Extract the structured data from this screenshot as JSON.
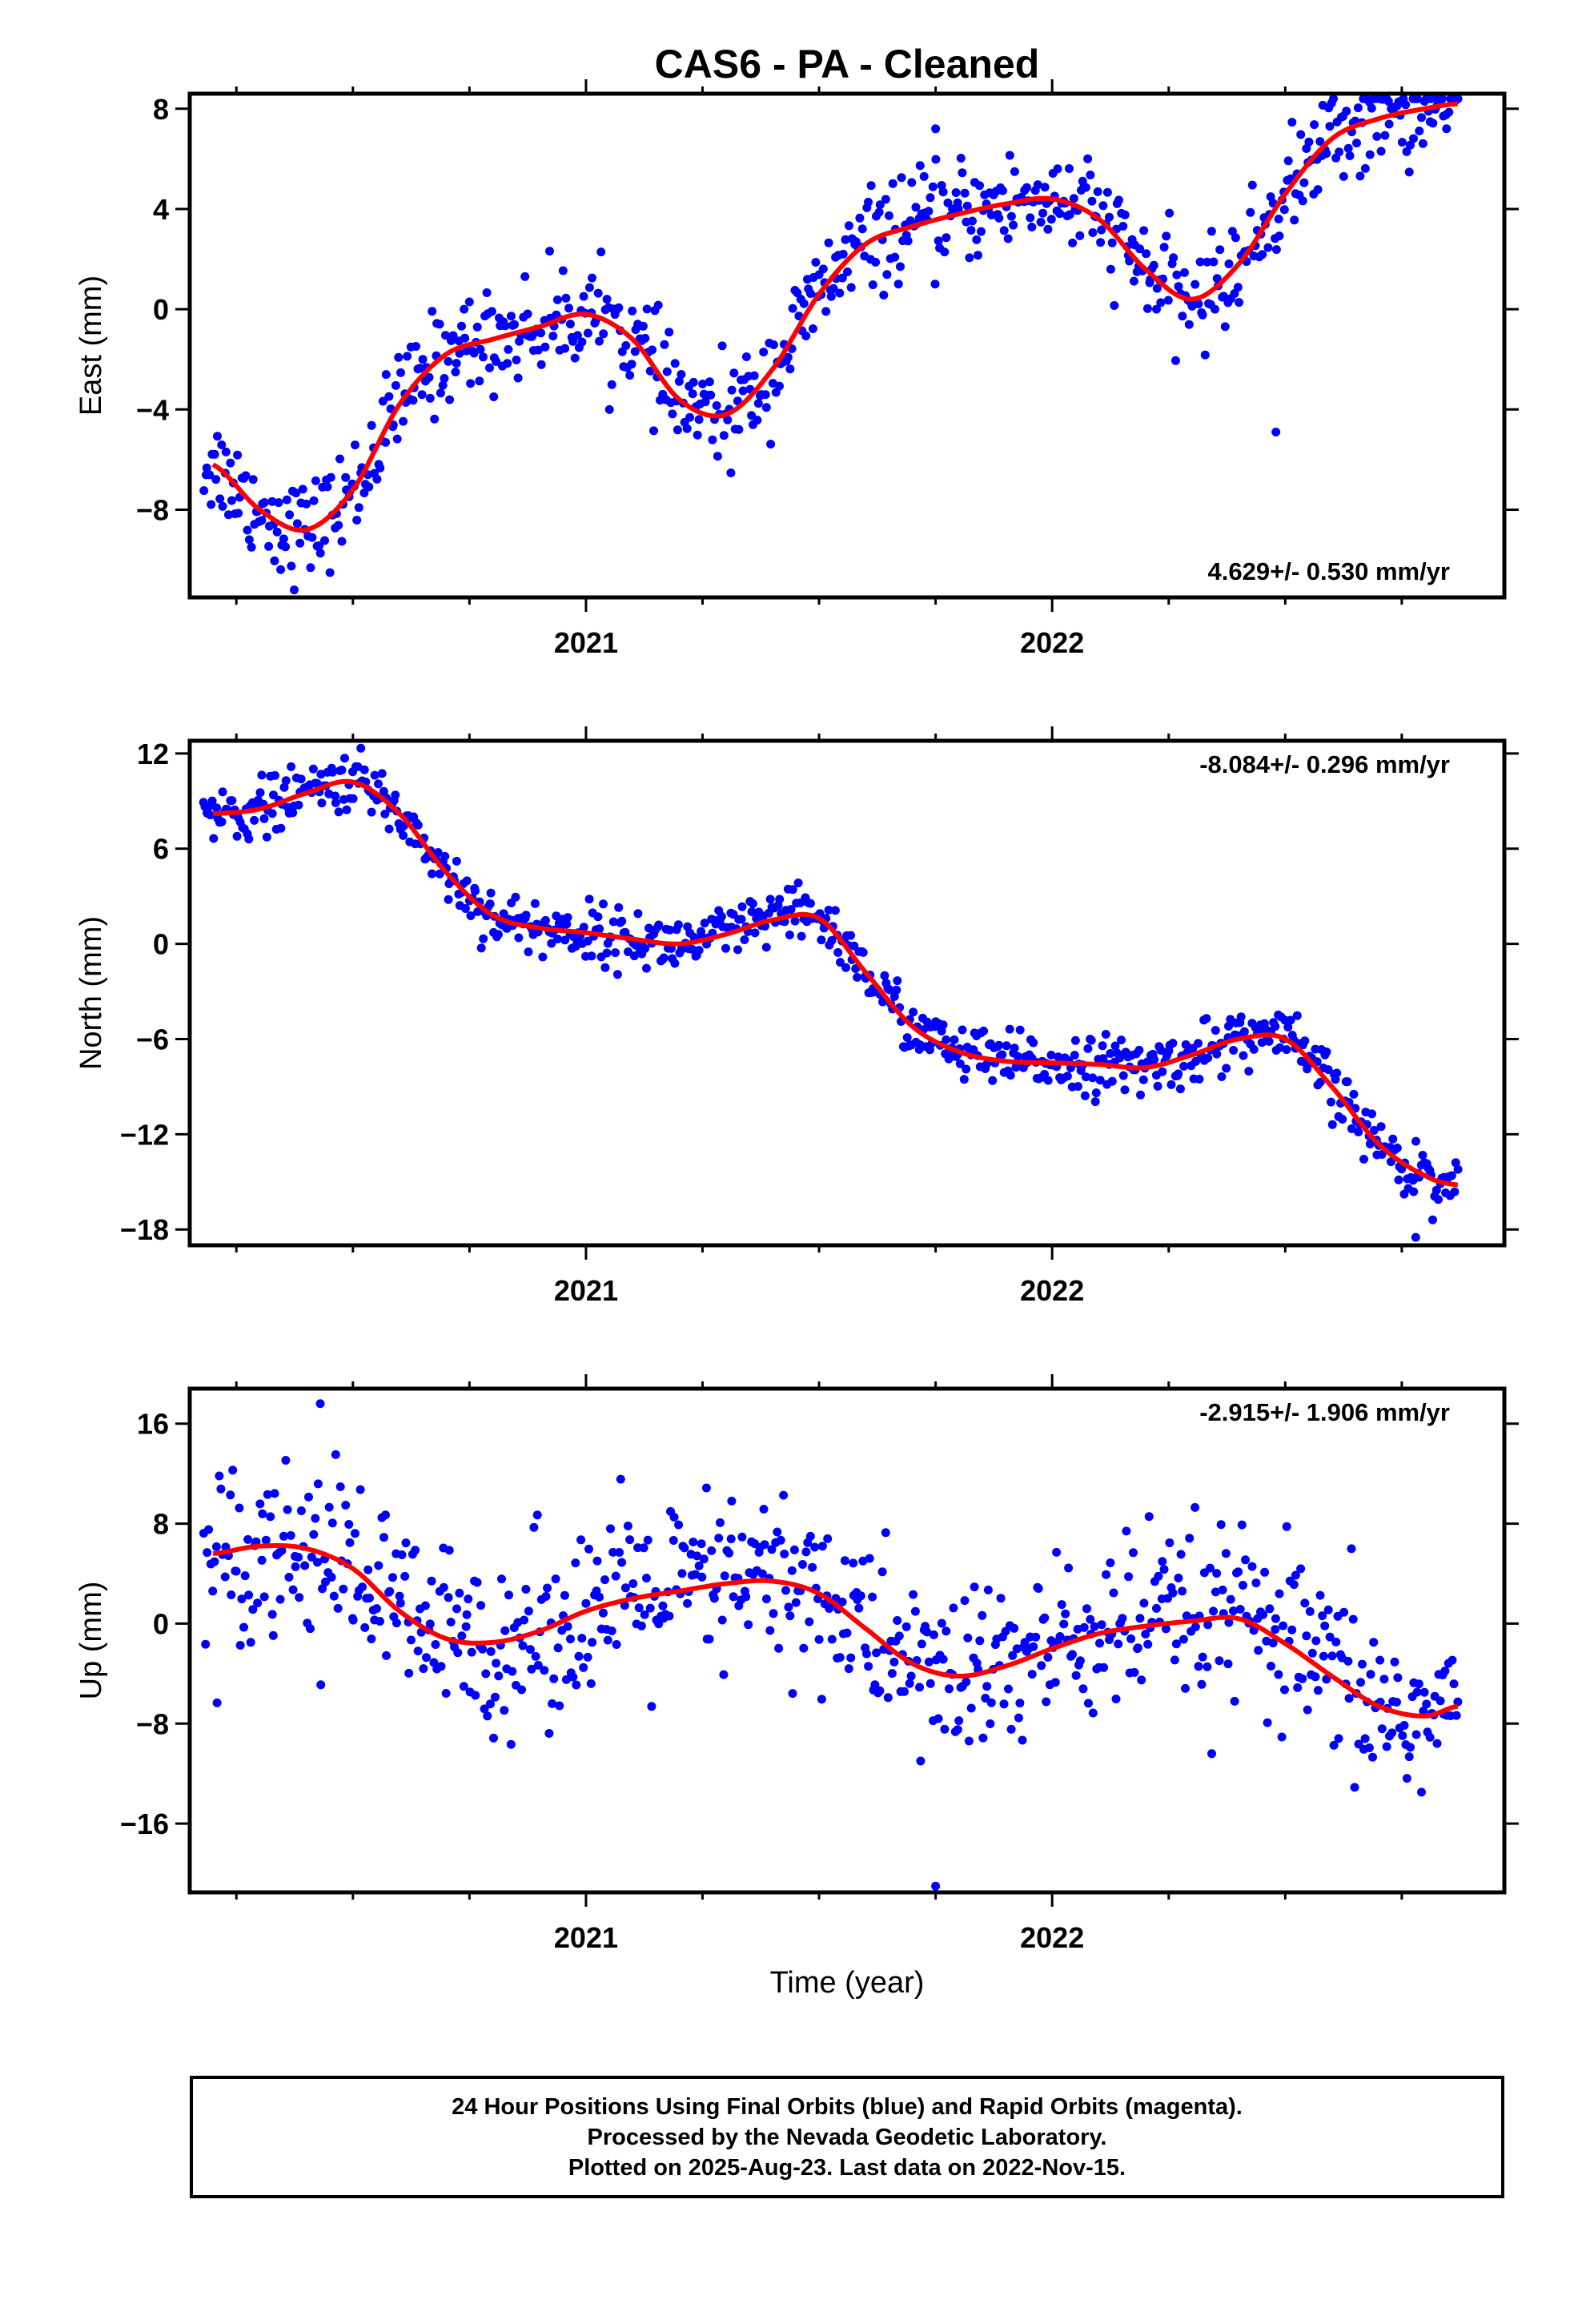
{
  "figure": {
    "title": "CAS6  - PA - Cleaned",
    "xlabel": "Time (year)",
    "footer": [
      "24 Hour Positions Using Final Orbits (blue) and Rapid Orbits (magenta).",
      "Processed by the Nevada Geodetic Laboratory.",
      "Plotted on 2025-Aug-23. Last data on 2022-Nov-15."
    ],
    "colors": {
      "points": "#0000ff",
      "fit": "#ff0000",
      "frame": "#000000"
    }
  },
  "chart_data": [
    {
      "type": "scatter",
      "name": "east",
      "ylabel": "East (mm)",
      "rate_text": "4.629+/- 0.530 mm/yr",
      "rate_position": "bottom-right",
      "xlim": [
        2020.15,
        2022.97
      ],
      "ylim": [
        -11.5,
        8.6
      ],
      "yticks": [
        8,
        4,
        0,
        -4,
        -8
      ],
      "ytick_labels": [
        "8",
        "4",
        "0",
        "−4",
        "−8"
      ],
      "xticks": [
        2021,
        2022
      ],
      "xtick_labels": [
        "2021",
        "2022"
      ],
      "fit": {
        "x": [
          2020.2,
          2020.3,
          2020.4,
          2020.5,
          2020.6,
          2020.7,
          2020.8,
          2020.9,
          2021.0,
          2021.1,
          2021.2,
          2021.3,
          2021.4,
          2021.5,
          2021.6,
          2021.7,
          2021.8,
          2021.9,
          2022.0,
          2022.1,
          2022.2,
          2022.3,
          2022.4,
          2022.5,
          2022.6,
          2022.7,
          2022.8,
          2022.87
        ],
        "y": [
          -6.2,
          -8.0,
          -8.8,
          -7.2,
          -3.8,
          -1.8,
          -1.2,
          -0.7,
          -0.2,
          -1.2,
          -3.6,
          -4.2,
          -2.4,
          0.6,
          2.6,
          3.3,
          3.8,
          4.2,
          4.4,
          3.6,
          1.6,
          0.4,
          1.8,
          4.6,
          6.8,
          7.6,
          8.0,
          8.2
        ]
      },
      "scatter_sigma": 1.0,
      "outliers": [
        {
          "x": 2022.48,
          "y": -4.9
        },
        {
          "x": 2021.75,
          "y": 7.2
        }
      ]
    },
    {
      "type": "scatter",
      "name": "north",
      "ylabel": "North (mm)",
      "rate_text": "-8.084+/- 0.296 mm/yr",
      "rate_position": "top-right",
      "xlim": [
        2020.15,
        2022.97
      ],
      "ylim": [
        -19.0,
        12.8
      ],
      "yticks": [
        12,
        6,
        0,
        -6,
        -12,
        -18
      ],
      "ytick_labels": [
        "12",
        "6",
        "0",
        "−6",
        "−12",
        "−18"
      ],
      "xticks": [
        2021,
        2022
      ],
      "xtick_labels": [
        "2021",
        "2022"
      ],
      "fit": {
        "x": [
          2020.2,
          2020.3,
          2020.4,
          2020.5,
          2020.6,
          2020.7,
          2020.8,
          2020.9,
          2021.0,
          2021.1,
          2021.2,
          2021.3,
          2021.4,
          2021.5,
          2021.6,
          2021.7,
          2021.8,
          2021.9,
          2022.0,
          2022.1,
          2022.2,
          2022.3,
          2022.4,
          2022.5,
          2022.6,
          2022.7,
          2022.8,
          2022.87
        ],
        "y": [
          8.2,
          8.5,
          9.5,
          10.2,
          8.2,
          4.5,
          1.8,
          1.0,
          0.7,
          0.3,
          0.0,
          0.6,
          1.5,
          1.6,
          -1.8,
          -5.2,
          -6.8,
          -7.4,
          -7.5,
          -7.6,
          -7.8,
          -7.0,
          -6.0,
          -6.0,
          -9.0,
          -12.6,
          -14.6,
          -15.2
        ]
      },
      "scatter_sigma": 0.9,
      "outliers": [
        {
          "x": 2022.78,
          "y": -18.5
        }
      ]
    },
    {
      "type": "scatter",
      "name": "up",
      "ylabel": "Up (mm)",
      "rate_text": "-2.915+/- 1.906 mm/yr",
      "rate_position": "top-right",
      "xlim": [
        2020.15,
        2022.97
      ],
      "ylim": [
        -21.5,
        18.8
      ],
      "yticks": [
        16,
        8,
        0,
        -8,
        -16
      ],
      "ytick_labels": [
        "16",
        "8",
        "0",
        "−8",
        "−16"
      ],
      "xticks": [
        2021,
        2022
      ],
      "xtick_labels": [
        "2021",
        "2022"
      ],
      "fit": {
        "x": [
          2020.2,
          2020.3,
          2020.4,
          2020.5,
          2020.6,
          2020.7,
          2020.8,
          2020.9,
          2021.0,
          2021.1,
          2021.2,
          2021.3,
          2021.4,
          2021.5,
          2021.6,
          2021.7,
          2021.8,
          2021.9,
          2022.0,
          2022.1,
          2022.2,
          2022.3,
          2022.4,
          2022.5,
          2022.6,
          2022.7,
          2022.8,
          2022.87
        ],
        "y": [
          5.6,
          6.2,
          6.0,
          4.4,
          1.0,
          -1.2,
          -1.5,
          -0.6,
          1.0,
          2.0,
          2.6,
          3.2,
          3.4,
          2.4,
          -0.4,
          -3.2,
          -4.2,
          -3.4,
          -2.0,
          -0.8,
          -0.2,
          0.2,
          0.4,
          -1.6,
          -4.2,
          -6.6,
          -7.4,
          -6.6
        ]
      },
      "scatter_sigma": 3.6,
      "outliers": [
        {
          "x": 2020.43,
          "y": 17.6
        },
        {
          "x": 2021.75,
          "y": -21.0
        }
      ]
    }
  ]
}
